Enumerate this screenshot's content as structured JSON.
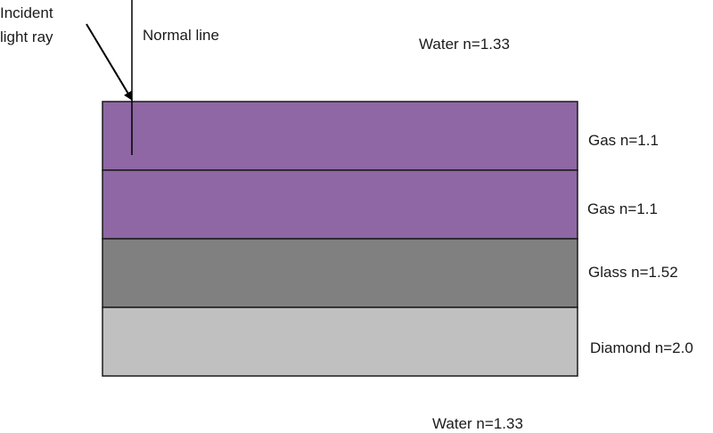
{
  "labels": {
    "incident_line1": "Incident",
    "incident_line2": "light ray",
    "normal": "Normal line",
    "water_top": "Water n=1.33",
    "water_bottom": "Water n=1.33"
  },
  "layers": [
    {
      "label": "Gas n=1.1",
      "color": "#8e67a4"
    },
    {
      "label": "Gas n=1.1",
      "color": "#8e67a4"
    },
    {
      "label": "Glass n=1.52",
      "color": "#808080"
    },
    {
      "label": "Diamond n=2.0",
      "color": "#c0c0c0"
    }
  ],
  "colors": {
    "outline": "#1a1a1a",
    "ray": "#000000"
  }
}
